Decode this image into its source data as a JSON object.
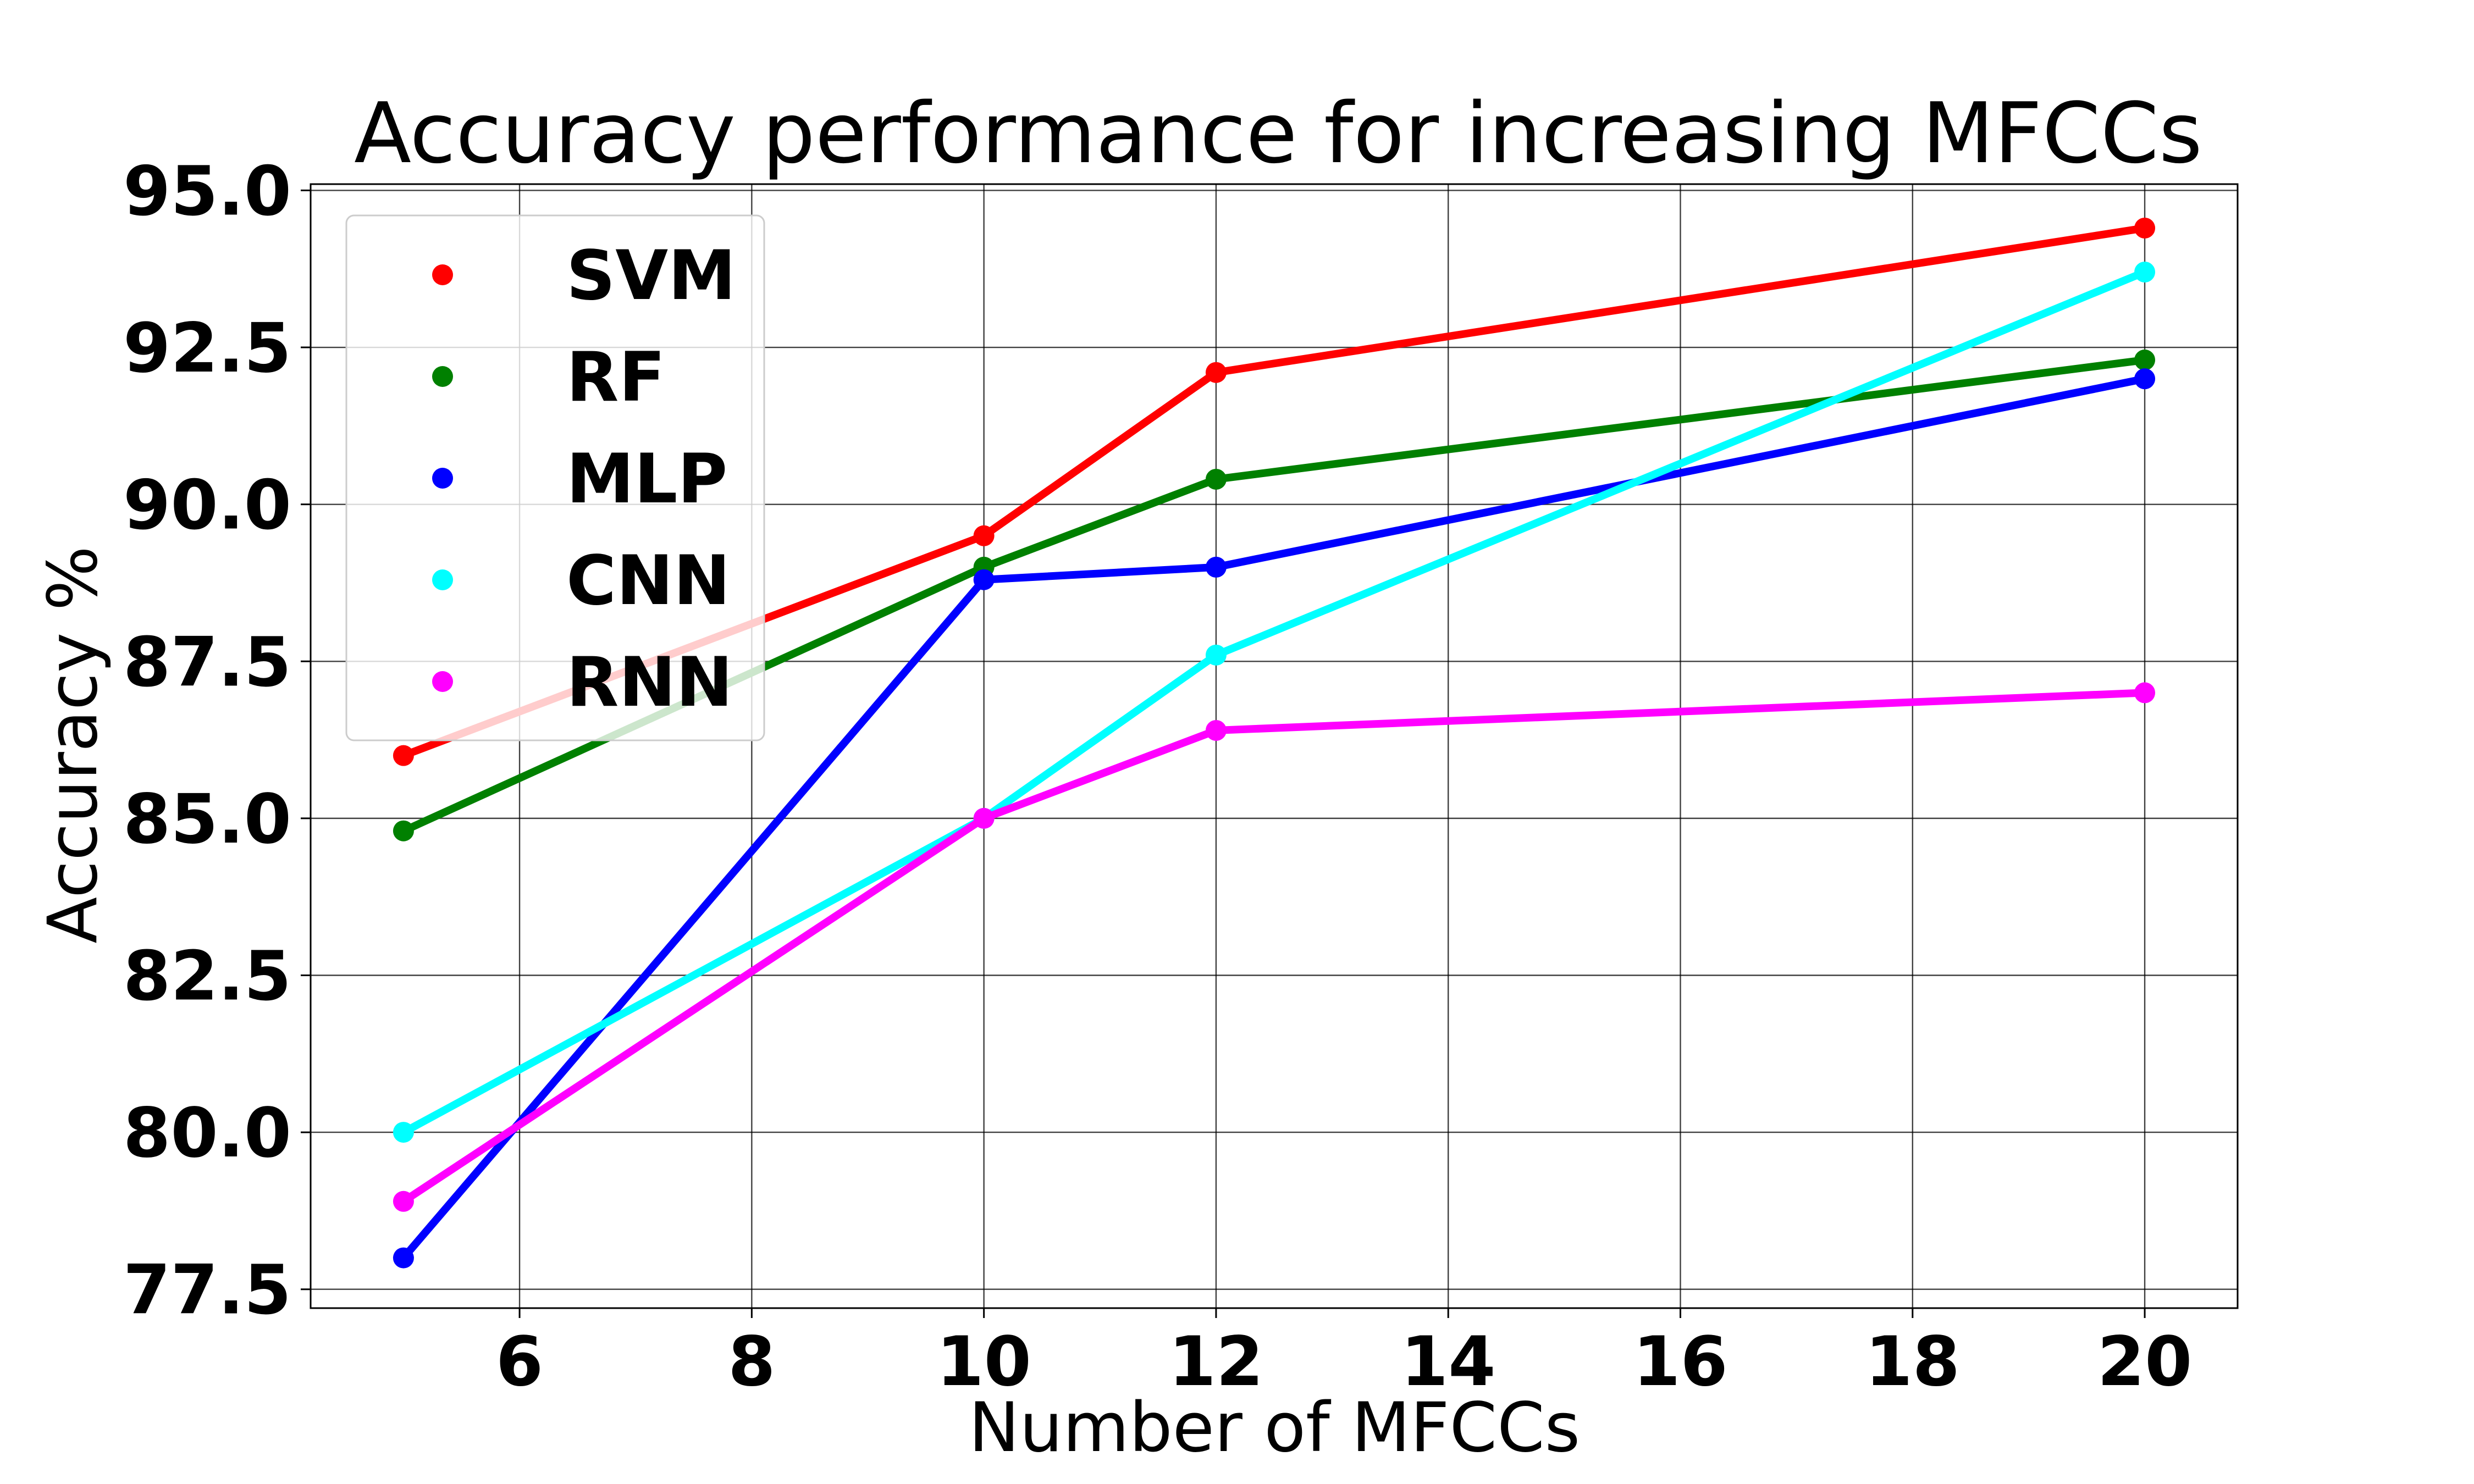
{
  "chart_data": {
    "type": "line",
    "title": "Accuracy performance for increasing MFCCs",
    "xlabel": "Number of MFCCs",
    "ylabel": "Accuracy %",
    "x": [
      5,
      10,
      12,
      20
    ],
    "xlim": [
      4.2,
      20.8
    ],
    "ylim": [
      77.2,
      95.1
    ],
    "xticks": [
      6,
      8,
      10,
      12,
      14,
      16,
      18,
      20
    ],
    "xtick_labels": [
      "6",
      "8",
      "10",
      "12",
      "14",
      "16",
      "18",
      "20"
    ],
    "yticks": [
      77.5,
      80.0,
      82.5,
      85.0,
      87.5,
      90.0,
      92.5,
      95.0
    ],
    "ytick_labels": [
      "77.5",
      "80.0",
      "82.5",
      "85.0",
      "87.5",
      "90.0",
      "92.5",
      "95.0"
    ],
    "grid": true,
    "legend_position": "upper-left",
    "series": [
      {
        "name": "SVM",
        "color": "#ff0000",
        "values": [
          86.0,
          89.5,
          92.1,
          94.4
        ]
      },
      {
        "name": "RF",
        "color": "#008000",
        "values": [
          84.8,
          89.0,
          90.4,
          92.3
        ]
      },
      {
        "name": "MLP",
        "color": "#0000ff",
        "values": [
          78.0,
          88.8,
          89.0,
          92.0
        ]
      },
      {
        "name": "CNN",
        "color": "#00ffff",
        "values": [
          80.0,
          85.0,
          87.6,
          93.7
        ]
      },
      {
        "name": "RNN",
        "color": "#ff00ff",
        "values": [
          78.9,
          85.0,
          86.4,
          87.0
        ]
      }
    ]
  }
}
